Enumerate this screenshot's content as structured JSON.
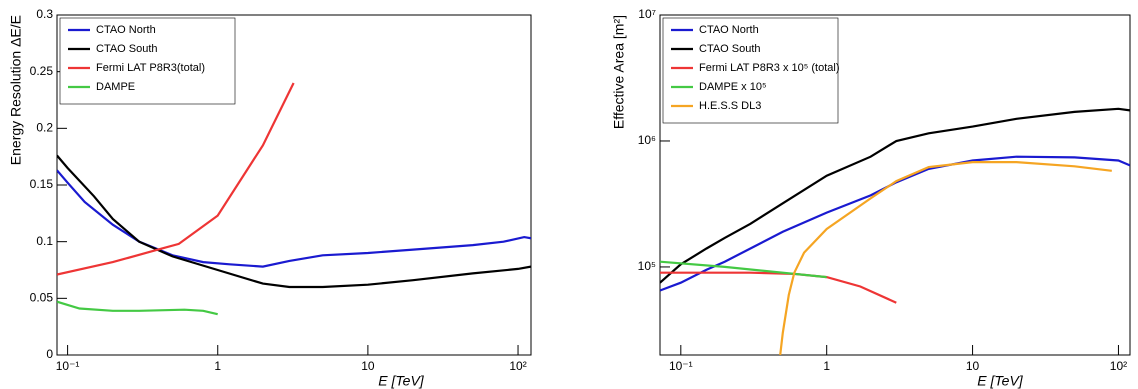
{
  "chart_data": [
    {
      "type": "line",
      "xlabel": "E [TeV]",
      "ylabel": "Energy Resolution ΔE/E",
      "xlog": true,
      "xlim": [
        0.085,
        122
      ],
      "xticks": [
        {
          "value": 0.1,
          "label": "10⁻¹"
        },
        1,
        10,
        {
          "value": 100,
          "label": "10²"
        }
      ],
      "ylim": [
        0,
        0.3
      ],
      "yticks": [
        0,
        0.05,
        0.1,
        0.15,
        0.2,
        0.25,
        0.3
      ],
      "legend": "upper left",
      "series": [
        {
          "name": "CTAO North",
          "color": "#1a1ad0",
          "x": [
            0.085,
            0.1,
            0.13,
            0.2,
            0.3,
            0.5,
            0.8,
            1.2,
            2,
            3,
            5,
            10,
            20,
            50,
            80,
            110,
            122
          ],
          "values": [
            0.163,
            0.152,
            0.135,
            0.115,
            0.1,
            0.088,
            0.082,
            0.08,
            0.078,
            0.083,
            0.088,
            0.09,
            0.093,
            0.097,
            0.1,
            0.104,
            0.103
          ]
        },
        {
          "name": "CTAO South",
          "color": "#000000",
          "x": [
            0.085,
            0.1,
            0.15,
            0.2,
            0.3,
            0.5,
            1,
            2,
            3,
            5,
            10,
            20,
            50,
            100,
            122
          ],
          "values": [
            0.176,
            0.165,
            0.14,
            0.12,
            0.1,
            0.087,
            0.075,
            0.063,
            0.06,
            0.06,
            0.062,
            0.066,
            0.072,
            0.076,
            0.078
          ]
        },
        {
          "name": "Fermi LAT P8R3(total)",
          "color": "#ee3535",
          "x": [
            0.085,
            0.2,
            0.4,
            0.55,
            1,
            2,
            3.2
          ],
          "values": [
            0.071,
            0.082,
            0.093,
            0.098,
            0.123,
            0.185,
            0.24
          ]
        },
        {
          "name": "DAMPE",
          "color": "#44c944",
          "x": [
            0.085,
            0.12,
            0.2,
            0.3,
            0.6,
            0.8,
            1
          ],
          "values": [
            0.047,
            0.041,
            0.039,
            0.039,
            0.04,
            0.039,
            0.036
          ]
        }
      ]
    },
    {
      "type": "line",
      "xlabel": "E [TeV]",
      "ylabel": "Effective Area [m²]",
      "xlog": true,
      "ylog": true,
      "xlim": [
        0.072,
        120
      ],
      "xticks": [
        {
          "value": 0.1,
          "label": "10⁻¹"
        },
        1,
        10,
        {
          "value": 100,
          "label": "10²"
        }
      ],
      "ylim": [
        20000,
        10000000
      ],
      "yticks": [
        {
          "value": 100000,
          "label": "10⁵"
        },
        {
          "value": 1000000,
          "label": "10⁶"
        },
        {
          "value": 10000000,
          "label": "10⁷"
        }
      ],
      "legend": "upper left",
      "series": [
        {
          "name": "CTAO North",
          "color": "#1a1ad0",
          "x": [
            0.072,
            0.1,
            0.15,
            0.2,
            0.3,
            0.5,
            1,
            2,
            3,
            5,
            10,
            20,
            50,
            100,
            120
          ],
          "values": [
            65000,
            75000,
            95000,
            110000,
            140000,
            190000,
            270000,
            370000,
            470000,
            600000,
            700000,
            750000,
            740000,
            700000,
            640000
          ]
        },
        {
          "name": "CTAO South",
          "color": "#000000",
          "x": [
            0.072,
            0.1,
            0.15,
            0.2,
            0.3,
            0.5,
            1,
            2,
            3,
            5,
            10,
            20,
            50,
            100,
            120
          ],
          "values": [
            75000,
            105000,
            140000,
            170000,
            220000,
            320000,
            530000,
            750000,
            1000000,
            1150000,
            1300000,
            1500000,
            1700000,
            1800000,
            1750000
          ]
        },
        {
          "name": "Fermi LAT P8R3 x 10⁵ (total)",
          "color": "#ee3535",
          "x": [
            0.072,
            0.3,
            0.6,
            1,
            1.7,
            3
          ],
          "values": [
            90000,
            90000,
            88000,
            83000,
            70000,
            52000
          ]
        },
        {
          "name": "DAMPE x 10⁵",
          "color": "#44c944",
          "x": [
            0.072,
            0.2,
            0.5,
            1
          ],
          "values": [
            110000,
            100000,
            90000,
            83000
          ]
        },
        {
          "name": "H.E.S.S DL3",
          "color": "#f5a523",
          "x": [
            0.48,
            0.5,
            0.55,
            0.6,
            0.7,
            1,
            2,
            3,
            5,
            10,
            20,
            50,
            90
          ],
          "values": [
            20000,
            30000,
            60000,
            90000,
            130000,
            200000,
            350000,
            480000,
            620000,
            680000,
            680000,
            630000,
            580000
          ]
        }
      ]
    }
  ]
}
